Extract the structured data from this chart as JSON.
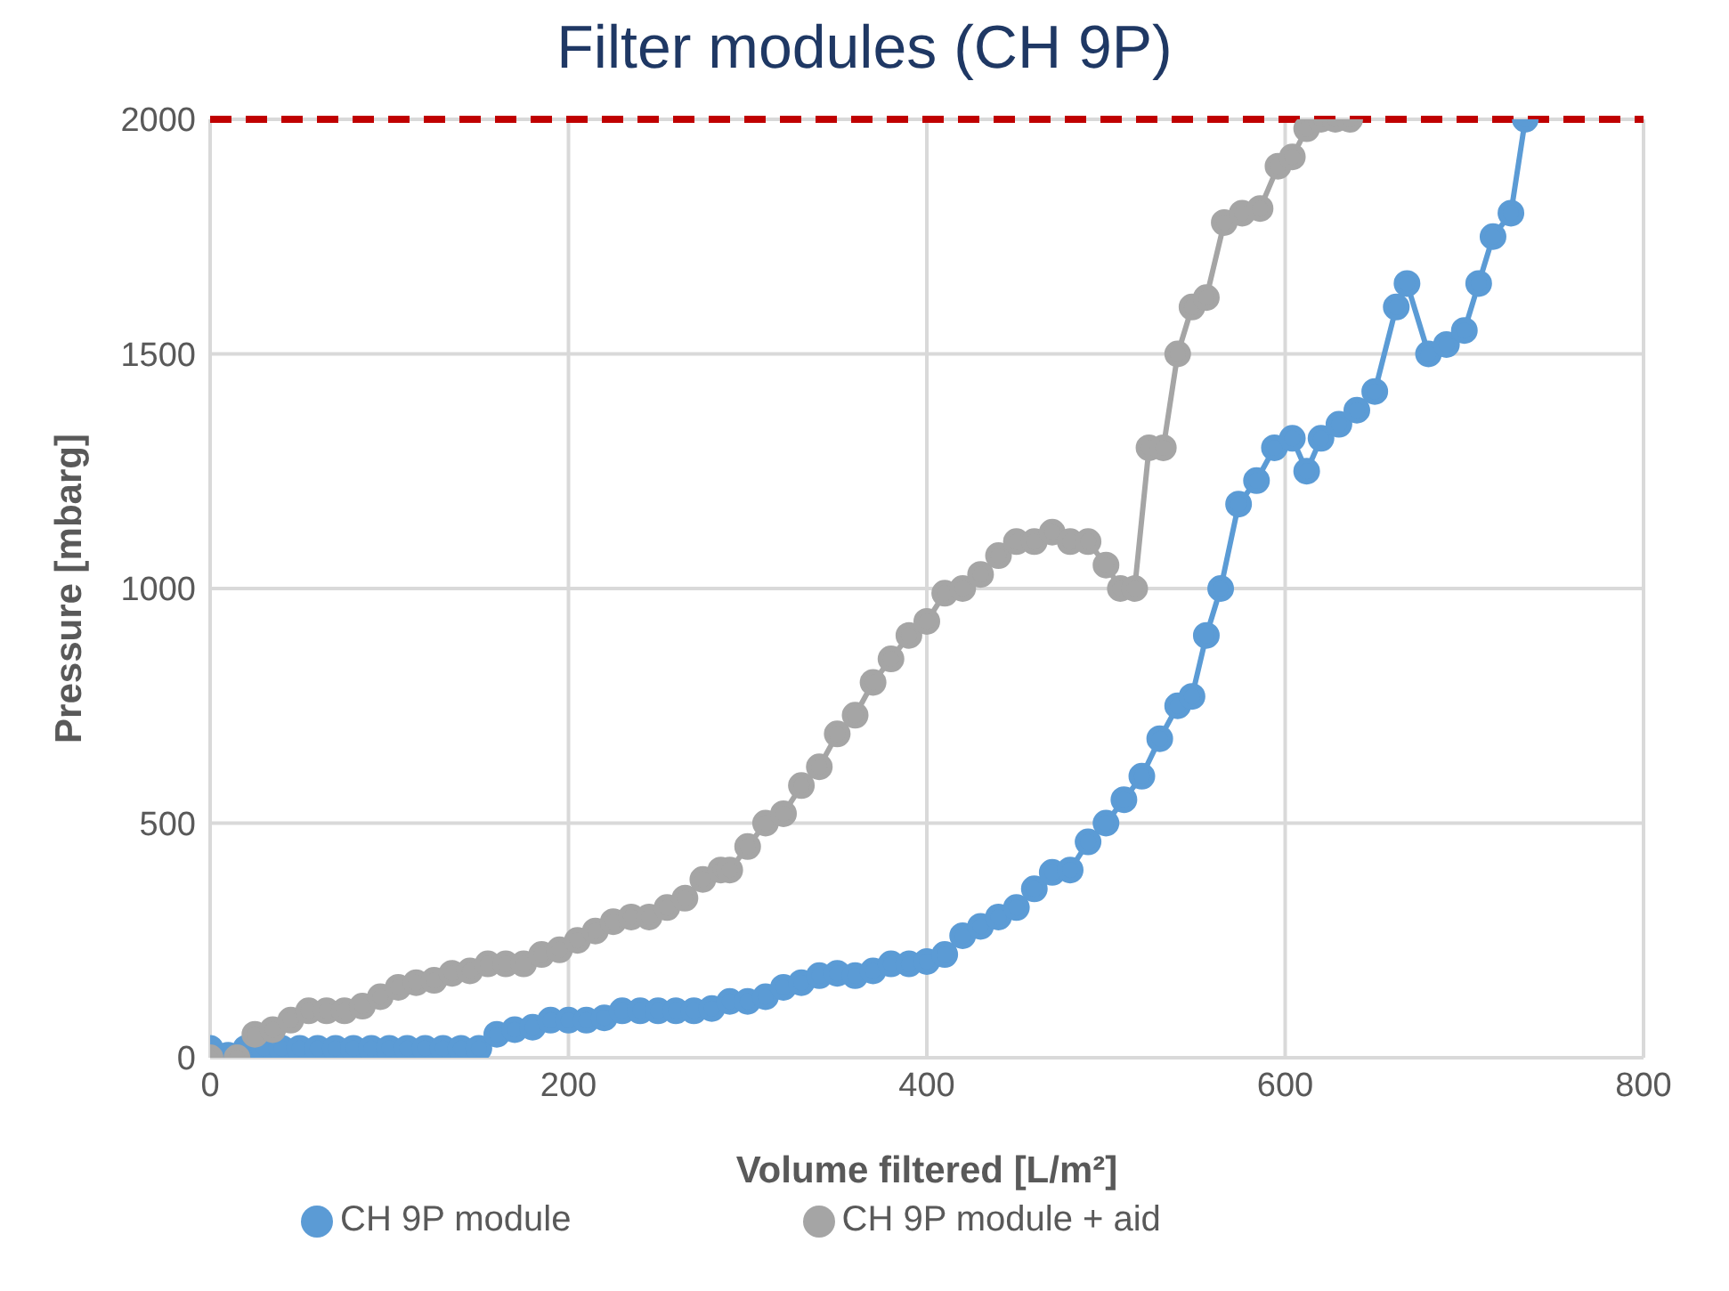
{
  "chart_data": {
    "type": "line",
    "title": "Filter modules (CH 9P)",
    "xlabel": "Volume filtered [L/m²]",
    "ylabel": "Pressure [mbarg]",
    "xlim": [
      0,
      800
    ],
    "xticks": [
      0,
      200,
      400,
      600,
      800
    ],
    "ylim": [
      0,
      2000
    ],
    "yticks": [
      0,
      500,
      1000,
      1500,
      2000
    ],
    "grid": true,
    "legend": "bottom",
    "marker": "circle",
    "line_style": "solid",
    "ref_lines": [
      {
        "axis": "y",
        "value": 2000,
        "color": "#c00000",
        "line_style": "dashed"
      }
    ],
    "series": [
      {
        "name": "CH 9P module",
        "color": "#5b9bd5",
        "x": [
          0,
          10,
          20,
          30,
          40,
          50,
          60,
          70,
          80,
          90,
          100,
          110,
          120,
          130,
          140,
          150,
          160,
          170,
          180,
          190,
          200,
          210,
          220,
          230,
          240,
          250,
          260,
          270,
          280,
          290,
          300,
          310,
          320,
          330,
          340,
          350,
          360,
          370,
          380,
          390,
          400,
          410,
          420,
          430,
          440,
          450,
          460,
          470,
          480,
          490,
          500,
          510,
          520,
          530,
          540,
          548,
          556,
          564,
          574,
          584,
          594,
          604,
          612,
          620,
          630,
          640,
          650,
          662,
          668,
          680,
          690,
          700,
          708,
          716,
          726,
          734
        ],
        "values": [
          20,
          5,
          20,
          20,
          20,
          20,
          20,
          20,
          20,
          20,
          20,
          20,
          20,
          20,
          20,
          20,
          50,
          60,
          65,
          80,
          80,
          80,
          85,
          100,
          100,
          100,
          100,
          100,
          105,
          120,
          120,
          130,
          150,
          160,
          175,
          180,
          175,
          185,
          200,
          200,
          205,
          220,
          260,
          280,
          300,
          320,
          360,
          395,
          400,
          460,
          500,
          550,
          600,
          680,
          750,
          770,
          900,
          1000,
          1180,
          1230,
          1300,
          1320,
          1250,
          1320,
          1350,
          1380,
          1420,
          1600,
          1650,
          1500,
          1520,
          1550,
          1650,
          1750,
          1800,
          2000
        ]
      },
      {
        "name": "CH 9P module + aid",
        "color": "#a5a5a5",
        "x": [
          0,
          15,
          25,
          35,
          45,
          55,
          65,
          75,
          85,
          95,
          105,
          115,
          125,
          135,
          145,
          155,
          165,
          175,
          185,
          195,
          205,
          215,
          225,
          235,
          245,
          255,
          265,
          275,
          285,
          290,
          300,
          310,
          320,
          330,
          340,
          350,
          360,
          370,
          380,
          390,
          400,
          410,
          420,
          430,
          440,
          450,
          460,
          470,
          480,
          490,
          500,
          508,
          516,
          524,
          532,
          540,
          548,
          556,
          566,
          576,
          586,
          596,
          604,
          612,
          620,
          628,
          636
        ],
        "values": [
          0,
          0,
          50,
          60,
          80,
          100,
          100,
          100,
          110,
          130,
          150,
          160,
          165,
          180,
          185,
          200,
          200,
          200,
          220,
          230,
          250,
          270,
          290,
          300,
          300,
          320,
          340,
          380,
          400,
          400,
          450,
          500,
          520,
          580,
          620,
          690,
          730,
          800,
          850,
          900,
          930,
          990,
          1000,
          1030,
          1070,
          1100,
          1100,
          1120,
          1100,
          1100,
          1050,
          1000,
          1000,
          1300,
          1300,
          1500,
          1600,
          1620,
          1780,
          1800,
          1810,
          1900,
          1920,
          1980,
          2000,
          2000,
          2000
        ]
      }
    ]
  }
}
